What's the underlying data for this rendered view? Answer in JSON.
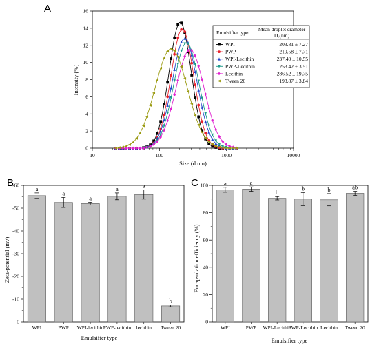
{
  "chart_data": [
    {
      "panel": "A",
      "type": "line",
      "xlabel": "Size (d.nm)",
      "ylabel": "Intensity (%)",
      "xscale": "log",
      "xlim": [
        10,
        10000
      ],
      "ylim": [
        0,
        16
      ],
      "xticks": [
        10,
        100,
        1000,
        10000
      ],
      "xtick_labels": [
        "10",
        "100",
        "1000",
        "10000"
      ],
      "yticks": [
        0,
        2,
        4,
        6,
        8,
        10,
        12,
        14,
        16
      ],
      "legend": {
        "placement": "top-right",
        "header_type": "Emulsifier type",
        "header_value_line1": "Mean droplet diameter",
        "header_value_line2": "Dᵥ(nm)"
      },
      "series": [
        {
          "name": "WPI",
          "value": "203.81 ± 7.27",
          "color": "#000000",
          "marker": "square",
          "center": 203.8,
          "peak": 14.7,
          "width": 0.165
        },
        {
          "name": "PWP",
          "value": "219.58 ± 7.71",
          "color": "#e8202a",
          "marker": "circle",
          "center": 219.6,
          "peak": 13.9,
          "width": 0.17
        },
        {
          "name": "WPI-Lecithin",
          "value": "237.40 ± 10.55",
          "color": "#2244cc",
          "marker": "triangle-up",
          "center": 237.4,
          "peak": 12.8,
          "width": 0.185
        },
        {
          "name": "PWP-Lecithin",
          "value": "253.42 ± 3.51",
          "color": "#1a9a8a",
          "marker": "triangle-down",
          "center": 253.4,
          "peak": 12.3,
          "width": 0.19
        },
        {
          "name": "Lecithin",
          "value": "286.52 ± 19.75",
          "color": "#e020d0",
          "marker": "diamond",
          "center": 286.5,
          "peak": 11.5,
          "width": 0.21
        },
        {
          "name": "Tween 20",
          "value": "193.87 ± 3.84",
          "color": "#9a9a10",
          "marker": "triangle-left",
          "center": 150,
          "peak": 11.6,
          "width": 0.24
        }
      ]
    },
    {
      "panel": "B",
      "type": "bar",
      "xlabel": "Emulsifier type",
      "ylabel": "Zeta-potential (mv)",
      "ylim": [
        0,
        -60
      ],
      "yticks": [
        0,
        -10,
        -20,
        -30,
        -40,
        -50,
        -60
      ],
      "ytick_labels": [
        "0",
        "-10",
        "-20",
        "-30",
        "-40",
        "-50",
        "-60"
      ],
      "categories": [
        "WPI",
        "PWP",
        "WPI-lecithin",
        "PWP-lecithin",
        "lecithin",
        "Tween 20"
      ],
      "values": [
        -55.5,
        -52.5,
        -52.0,
        -55.2,
        -56.0,
        -7.0
      ],
      "errors": [
        1.2,
        2.2,
        0.6,
        1.5,
        2.0,
        0.4
      ],
      "letters": [
        "a",
        "a",
        "a",
        "a",
        "a",
        "b"
      ],
      "bar_color": "#c0c0c0"
    },
    {
      "panel": "C",
      "type": "bar",
      "xlabel": "Emulsifier type",
      "ylabel": "Encapsulation efficiency (%)",
      "ylim": [
        0,
        100
      ],
      "yticks": [
        0,
        20,
        40,
        60,
        80,
        100
      ],
      "ytick_labels": [
        "0",
        "20",
        "40",
        "60",
        "80",
        "100"
      ],
      "categories": [
        "WPI",
        "PWP",
        "WPI-Lecithin",
        "PWP-Lecithin",
        "Lecithin",
        "Tween 20"
      ],
      "values": [
        96.8,
        97.3,
        90.6,
        90.0,
        89.5,
        94.2
      ],
      "errors": [
        1.8,
        1.6,
        1.2,
        4.8,
        4.5,
        1.5
      ],
      "letters": [
        "a",
        "a",
        "b",
        "b",
        "b",
        "ab"
      ],
      "bar_color": "#c0c0c0"
    }
  ]
}
